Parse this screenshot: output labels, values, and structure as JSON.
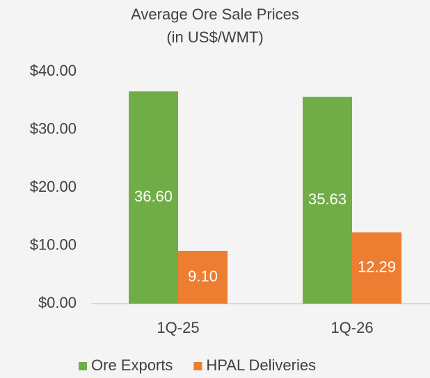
{
  "chart_data": {
    "type": "bar",
    "title": "Average Ore Sale Prices",
    "subtitle": "(in US$/WMT)",
    "categories": [
      "1Q-25",
      "1Q-26"
    ],
    "series": [
      {
        "name": "Ore Exports",
        "color": "#70ad47",
        "values": [
          36.6,
          35.63
        ],
        "value_labels": [
          "36.60",
          "35.63"
        ]
      },
      {
        "name": "HPAL Deliveries",
        "color": "#ed7d31",
        "values": [
          9.1,
          12.29
        ],
        "value_labels": [
          "9.10",
          "12.29"
        ]
      }
    ],
    "ylim": [
      0,
      40
    ],
    "yticks": [
      {
        "value": 0,
        "label": "$0.00"
      },
      {
        "value": 10,
        "label": "$10.00"
      },
      {
        "value": 20,
        "label": "$20.00"
      },
      {
        "value": 30,
        "label": "$30.00"
      },
      {
        "value": 40,
        "label": "$40.00"
      }
    ],
    "grid": false,
    "legend": "bottom"
  }
}
